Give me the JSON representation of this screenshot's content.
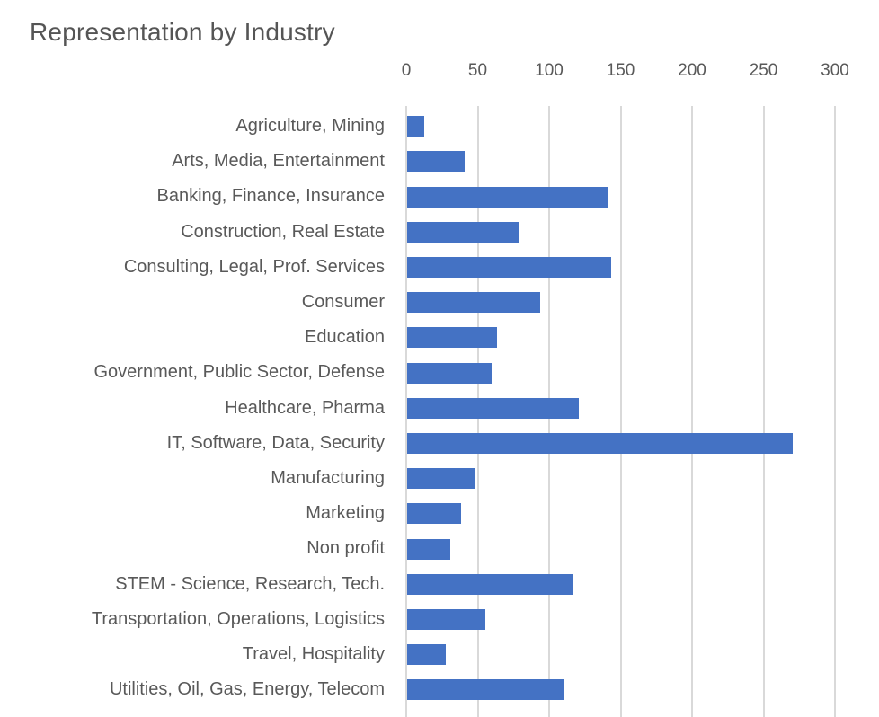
{
  "chart_data": {
    "type": "bar",
    "orientation": "horizontal",
    "title": "Representation by Industry",
    "categories": [
      "Agriculture, Mining",
      "Arts, Media, Entertainment",
      "Banking, Finance, Insurance",
      "Construction, Real Estate",
      "Consulting, Legal, Prof. Services",
      "Consumer",
      "Education",
      "Government, Public Sector, Defense",
      "Healthcare, Pharma",
      "IT, Software, Data, Security",
      "Manufacturing",
      "Marketing",
      "Non profit",
      "STEM - Science, Research, Tech.",
      "Transportation, Operations, Logistics",
      "Travel, Hospitality",
      "Utilities, Oil, Gas, Energy, Telecom"
    ],
    "values": [
      12,
      40,
      140,
      78,
      143,
      93,
      63,
      59,
      120,
      270,
      48,
      38,
      30,
      116,
      55,
      27,
      110
    ],
    "xlabel": "",
    "ylabel": "",
    "xlim": [
      0,
      300
    ],
    "x_ticks": [
      0,
      50,
      100,
      150,
      200,
      250,
      300
    ],
    "axis_position": "top",
    "grid": true,
    "legend_position": "none",
    "bar_color": "#4472C4",
    "gridline_color": "#D9D9D9",
    "text_color": "#595959",
    "background_color": "#FFFFFF"
  }
}
